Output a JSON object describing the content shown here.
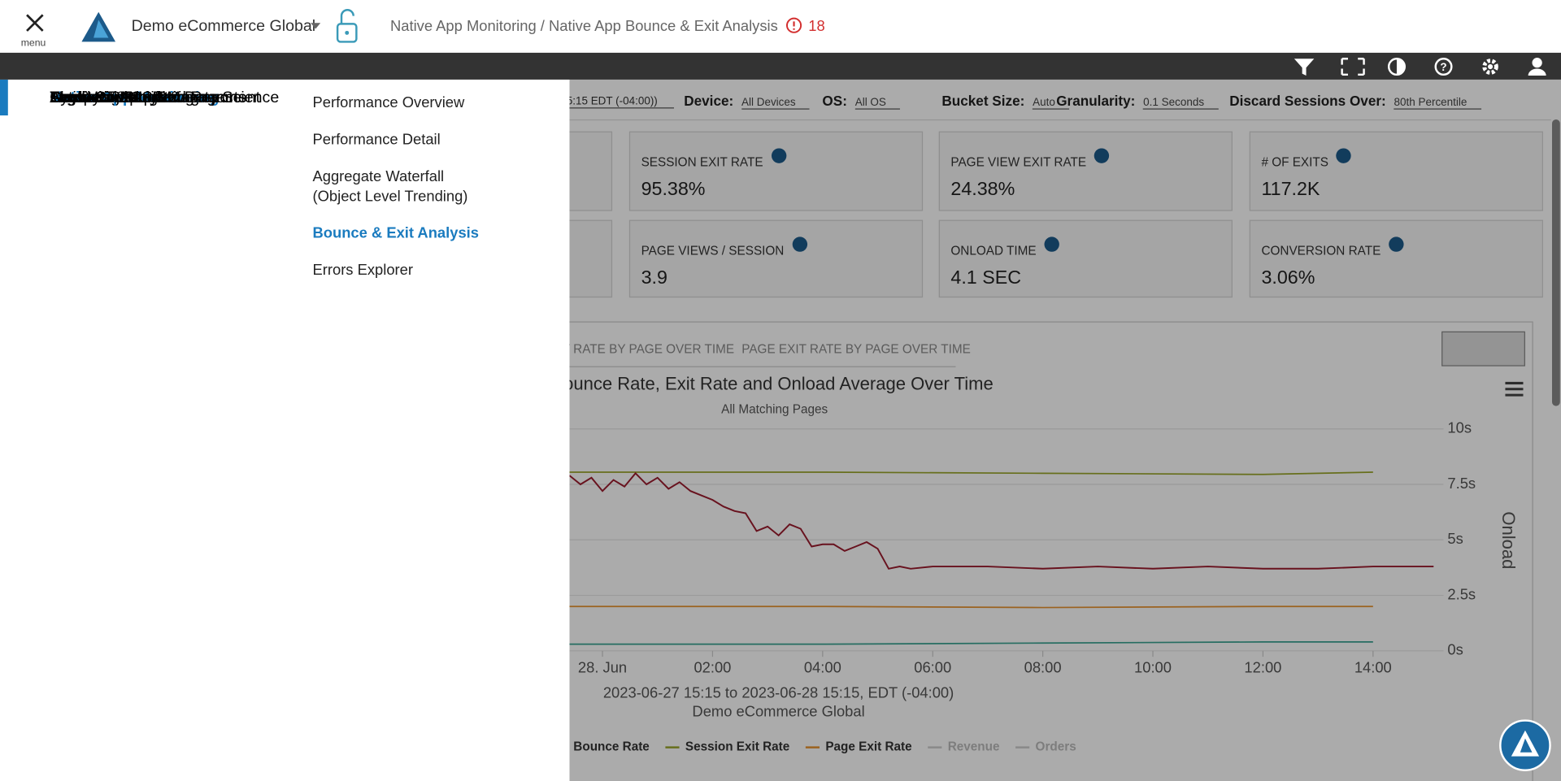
{
  "header": {
    "menu_label": "menu",
    "org": "Demo eCommerce Global",
    "breadcrumb": "Native App Monitoring / Native App Bounce & Exit Analysis",
    "alert_count": 18
  },
  "nav": {
    "items": [
      "Dashboards",
      "Executive Reports",
      "Business Analytics",
      "Marketing Insights",
      "Real User Monitoring",
      "Native App Monitoring",
      "Synthetic Monitoring",
      "Custom Reports & Data Science",
      "Tag & Content Governance",
      "Services & CSP Management",
      "Activity Tracker",
      "Alerts & Automated Reports",
      "Competitive Index",
      "Logs"
    ],
    "has_submenu": [
      false,
      true,
      true,
      true,
      true,
      true,
      true,
      false,
      true,
      true,
      false,
      true,
      true,
      false
    ],
    "active": 5
  },
  "submenu": {
    "items": [
      "Performance Overview",
      "Performance Detail",
      "Aggregate Waterfall\n(Object Level Trending)",
      "Bounce & Exit Analysis",
      "Errors Explorer"
    ],
    "active": 3
  },
  "filters": {
    "partial": "5:15 EDT (-04:00))",
    "items": [
      {
        "label": "Device:",
        "value": "All Devices"
      },
      {
        "label": "OS:",
        "value": "All OS"
      },
      {
        "label": "Bucket Size:",
        "value": "Auto"
      },
      {
        "label": "Granularity:",
        "value": "0.1 Seconds"
      },
      {
        "label": "Discard Sessions Over:",
        "value": "80th Percentile"
      }
    ]
  },
  "metrics": [
    {
      "label": "SESSION EXIT RATE",
      "value": "95.38%"
    },
    {
      "label": "PAGE VIEW EXIT RATE",
      "value": "24.38%"
    },
    {
      "label": "# OF EXITS",
      "value": "117.2K"
    },
    {
      "label": "PAGE VIEWS / SESSION",
      "value": "3.9"
    },
    {
      "label": "ONLOAD TIME",
      "value": "4.1 SEC"
    },
    {
      "label": "CONVERSION RATE",
      "value": "3.06%"
    }
  ],
  "tabs": [
    "T RATE BY PAGE OVER TIME",
    "PAGE EXIT RATE BY PAGE OVER TIME"
  ],
  "chart_data": {
    "type": "line",
    "title": "ounce Rate, Exit Rate and Onload Average Over Time",
    "subtitle": "All Matching Pages",
    "y2_label": "Onload",
    "caption": [
      "2023-06-27 15:15 to 2023-06-28 15:15, EDT (-04:00)",
      "Demo eCommerce Global"
    ],
    "xlim": [
      -0.6,
      15.1
    ],
    "xticks": [
      {
        "value": 0,
        "label": "28. Jun"
      },
      {
        "value": 2,
        "label": "02:00"
      },
      {
        "value": 4,
        "label": "04:00"
      },
      {
        "value": 6,
        "label": "06:00"
      },
      {
        "value": 8,
        "label": "08:00"
      },
      {
        "value": 10,
        "label": "10:00"
      },
      {
        "value": 12,
        "label": "12:00"
      },
      {
        "value": 14,
        "label": "14:00"
      }
    ],
    "y2lim": [
      0,
      10
    ],
    "y2ticks": [
      {
        "value": 10,
        "label": "10s"
      },
      {
        "value": 7.5,
        "label": "7.5s"
      },
      {
        "value": 5,
        "label": "5s"
      },
      {
        "value": 2.5,
        "label": "2.5s"
      },
      {
        "value": 0,
        "label": "0s"
      }
    ],
    "grid": true,
    "series": [
      {
        "name": "Bounce Rate",
        "color": "#3aa391",
        "axis": "y2",
        "x": [
          -0.6,
          4,
          8,
          12,
          14
        ],
        "values": [
          0.3,
          0.3,
          0.35,
          0.4,
          0.4
        ]
      },
      {
        "name": "Session Exit Rate",
        "color": "#9aa62a",
        "axis": "y2",
        "x": [
          -0.6,
          4,
          8,
          12,
          14
        ],
        "values": [
          8.05,
          8.05,
          8.0,
          7.95,
          8.05
        ]
      },
      {
        "name": "Page Exit Rate",
        "color": "#e8922f",
        "axis": "y2",
        "x": [
          -0.6,
          4,
          8,
          12,
          14
        ],
        "values": [
          2.0,
          2.0,
          1.95,
          2.0,
          2.0
        ]
      },
      {
        "color": "#9c1b2e",
        "axis": "y2",
        "x": [
          -0.6,
          -0.4,
          -0.2,
          0,
          0.2,
          0.4,
          0.6,
          0.8,
          1,
          1.2,
          1.4,
          1.6,
          1.8,
          2,
          2.2,
          2.4,
          2.6,
          2.8,
          3,
          3.2,
          3.4,
          3.6,
          3.8,
          4,
          4.2,
          4.4,
          4.6,
          4.8,
          5,
          5.2,
          5.4,
          5.6,
          6,
          7,
          8,
          9,
          10,
          11,
          12,
          13,
          14,
          15.1
        ],
        "values": [
          7.9,
          7.5,
          7.8,
          7.2,
          7.7,
          7.4,
          8.0,
          7.5,
          7.8,
          7.3,
          7.6,
          7.2,
          7.0,
          6.8,
          6.5,
          6.3,
          6.2,
          5.4,
          5.6,
          5.2,
          5.7,
          5.5,
          4.7,
          4.8,
          4.8,
          4.5,
          4.7,
          4.9,
          4.6,
          3.7,
          3.8,
          3.7,
          3.8,
          3.8,
          3.7,
          3.8,
          3.7,
          3.8,
          3.7,
          3.7,
          3.8,
          3.8
        ]
      }
    ],
    "hidden_legend": [
      "Revenue",
      "Orders"
    ]
  }
}
